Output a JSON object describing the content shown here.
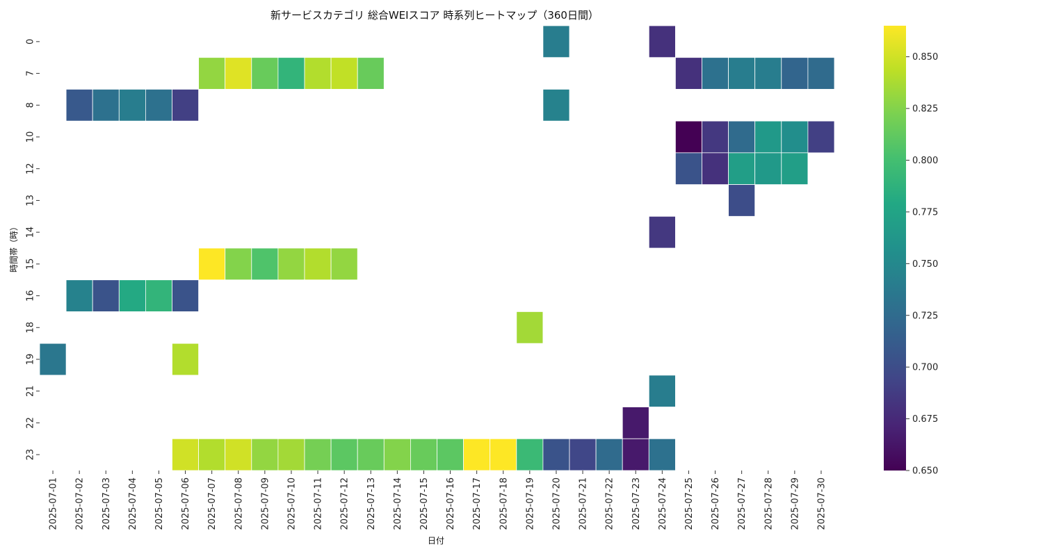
{
  "chart_data": {
    "type": "heatmap",
    "title": "新サービスカテゴリ 総合WEIスコア 時系列ヒートマップ（360日間）",
    "xlabel": "日付",
    "ylabel": "時間帯（時）",
    "colormap": "viridis",
    "colorbar": {
      "range": [
        0.65,
        0.865
      ],
      "ticks": [
        "0.650",
        "0.675",
        "0.700",
        "0.725",
        "0.750",
        "0.775",
        "0.800",
        "0.825",
        "0.850"
      ]
    },
    "x_categories": [
      "2025-07-01",
      "2025-07-02",
      "2025-07-03",
      "2025-07-04",
      "2025-07-05",
      "2025-07-06",
      "2025-07-07",
      "2025-07-08",
      "2025-07-09",
      "2025-07-10",
      "2025-07-11",
      "2025-07-12",
      "2025-07-13",
      "2025-07-14",
      "2025-07-15",
      "2025-07-16",
      "2025-07-17",
      "2025-07-18",
      "2025-07-19",
      "2025-07-20",
      "2025-07-21",
      "2025-07-22",
      "2025-07-23",
      "2025-07-24",
      "2025-07-25",
      "2025-07-26",
      "2025-07-27",
      "2025-07-28",
      "2025-07-29",
      "2025-07-30"
    ],
    "y_categories": [
      "0",
      "7",
      "8",
      "10",
      "12",
      "13",
      "14",
      "15",
      "16",
      "18",
      "19",
      "21",
      "22",
      "23"
    ],
    "cells": [
      {
        "x": "2025-07-20",
        "y": "0",
        "value": 0.74
      },
      {
        "x": "2025-07-24",
        "y": "0",
        "value": 0.68
      },
      {
        "x": "2025-07-07",
        "y": "7",
        "value": 0.83
      },
      {
        "x": "2025-07-08",
        "y": "7",
        "value": 0.855
      },
      {
        "x": "2025-07-09",
        "y": "7",
        "value": 0.815
      },
      {
        "x": "2025-07-10",
        "y": "7",
        "value": 0.79
      },
      {
        "x": "2025-07-11",
        "y": "7",
        "value": 0.84
      },
      {
        "x": "2025-07-12",
        "y": "7",
        "value": 0.845
      },
      {
        "x": "2025-07-13",
        "y": "7",
        "value": 0.815
      },
      {
        "x": "2025-07-25",
        "y": "7",
        "value": 0.68
      },
      {
        "x": "2025-07-26",
        "y": "7",
        "value": 0.73
      },
      {
        "x": "2025-07-27",
        "y": "7",
        "value": 0.74
      },
      {
        "x": "2025-07-28",
        "y": "7",
        "value": 0.74
      },
      {
        "x": "2025-07-29",
        "y": "7",
        "value": 0.72
      },
      {
        "x": "2025-07-30",
        "y": "7",
        "value": 0.725
      },
      {
        "x": "2025-07-02",
        "y": "8",
        "value": 0.71
      },
      {
        "x": "2025-07-03",
        "y": "8",
        "value": 0.73
      },
      {
        "x": "2025-07-04",
        "y": "8",
        "value": 0.74
      },
      {
        "x": "2025-07-05",
        "y": "8",
        "value": 0.73
      },
      {
        "x": "2025-07-06",
        "y": "8",
        "value": 0.69
      },
      {
        "x": "2025-07-20",
        "y": "8",
        "value": 0.745
      },
      {
        "x": "2025-07-25",
        "y": "10",
        "value": 0.65
      },
      {
        "x": "2025-07-26",
        "y": "10",
        "value": 0.685
      },
      {
        "x": "2025-07-27",
        "y": "10",
        "value": 0.725
      },
      {
        "x": "2025-07-28",
        "y": "10",
        "value": 0.765
      },
      {
        "x": "2025-07-29",
        "y": "10",
        "value": 0.755
      },
      {
        "x": "2025-07-30",
        "y": "10",
        "value": 0.69
      },
      {
        "x": "2025-07-25",
        "y": "12",
        "value": 0.705
      },
      {
        "x": "2025-07-26",
        "y": "12",
        "value": 0.68
      },
      {
        "x": "2025-07-27",
        "y": "12",
        "value": 0.77
      },
      {
        "x": "2025-07-28",
        "y": "12",
        "value": 0.765
      },
      {
        "x": "2025-07-29",
        "y": "12",
        "value": 0.77
      },
      {
        "x": "2025-07-27",
        "y": "13",
        "value": 0.7
      },
      {
        "x": "2025-07-24",
        "y": "14",
        "value": 0.685
      },
      {
        "x": "2025-07-07",
        "y": "15",
        "value": 0.865
      },
      {
        "x": "2025-07-08",
        "y": "15",
        "value": 0.825
      },
      {
        "x": "2025-07-09",
        "y": "15",
        "value": 0.805
      },
      {
        "x": "2025-07-10",
        "y": "15",
        "value": 0.83
      },
      {
        "x": "2025-07-11",
        "y": "15",
        "value": 0.84
      },
      {
        "x": "2025-07-12",
        "y": "15",
        "value": 0.83
      },
      {
        "x": "2025-07-02",
        "y": "16",
        "value": 0.745
      },
      {
        "x": "2025-07-03",
        "y": "16",
        "value": 0.705
      },
      {
        "x": "2025-07-04",
        "y": "16",
        "value": 0.78
      },
      {
        "x": "2025-07-05",
        "y": "16",
        "value": 0.79
      },
      {
        "x": "2025-07-06",
        "y": "16",
        "value": 0.705
      },
      {
        "x": "2025-07-19",
        "y": "18",
        "value": 0.835
      },
      {
        "x": "2025-07-01",
        "y": "19",
        "value": 0.735
      },
      {
        "x": "2025-07-06",
        "y": "19",
        "value": 0.84
      },
      {
        "x": "2025-07-24",
        "y": "21",
        "value": 0.74
      },
      {
        "x": "2025-07-23",
        "y": "22",
        "value": 0.665
      },
      {
        "x": "2025-07-06",
        "y": "23",
        "value": 0.85
      },
      {
        "x": "2025-07-07",
        "y": "23",
        "value": 0.84
      },
      {
        "x": "2025-07-08",
        "y": "23",
        "value": 0.85
      },
      {
        "x": "2025-07-09",
        "y": "23",
        "value": 0.83
      },
      {
        "x": "2025-07-10",
        "y": "23",
        "value": 0.835
      },
      {
        "x": "2025-07-11",
        "y": "23",
        "value": 0.82
      },
      {
        "x": "2025-07-12",
        "y": "23",
        "value": 0.81
      },
      {
        "x": "2025-07-13",
        "y": "23",
        "value": 0.815
      },
      {
        "x": "2025-07-14",
        "y": "23",
        "value": 0.825
      },
      {
        "x": "2025-07-15",
        "y": "23",
        "value": 0.815
      },
      {
        "x": "2025-07-16",
        "y": "23",
        "value": 0.81
      },
      {
        "x": "2025-07-17",
        "y": "23",
        "value": 0.865
      },
      {
        "x": "2025-07-18",
        "y": "23",
        "value": 0.865
      },
      {
        "x": "2025-07-19",
        "y": "23",
        "value": 0.795
      },
      {
        "x": "2025-07-20",
        "y": "23",
        "value": 0.705
      },
      {
        "x": "2025-07-21",
        "y": "23",
        "value": 0.695
      },
      {
        "x": "2025-07-22",
        "y": "23",
        "value": 0.725
      },
      {
        "x": "2025-07-23",
        "y": "23",
        "value": 0.665
      },
      {
        "x": "2025-07-24",
        "y": "23",
        "value": 0.73
      }
    ]
  }
}
